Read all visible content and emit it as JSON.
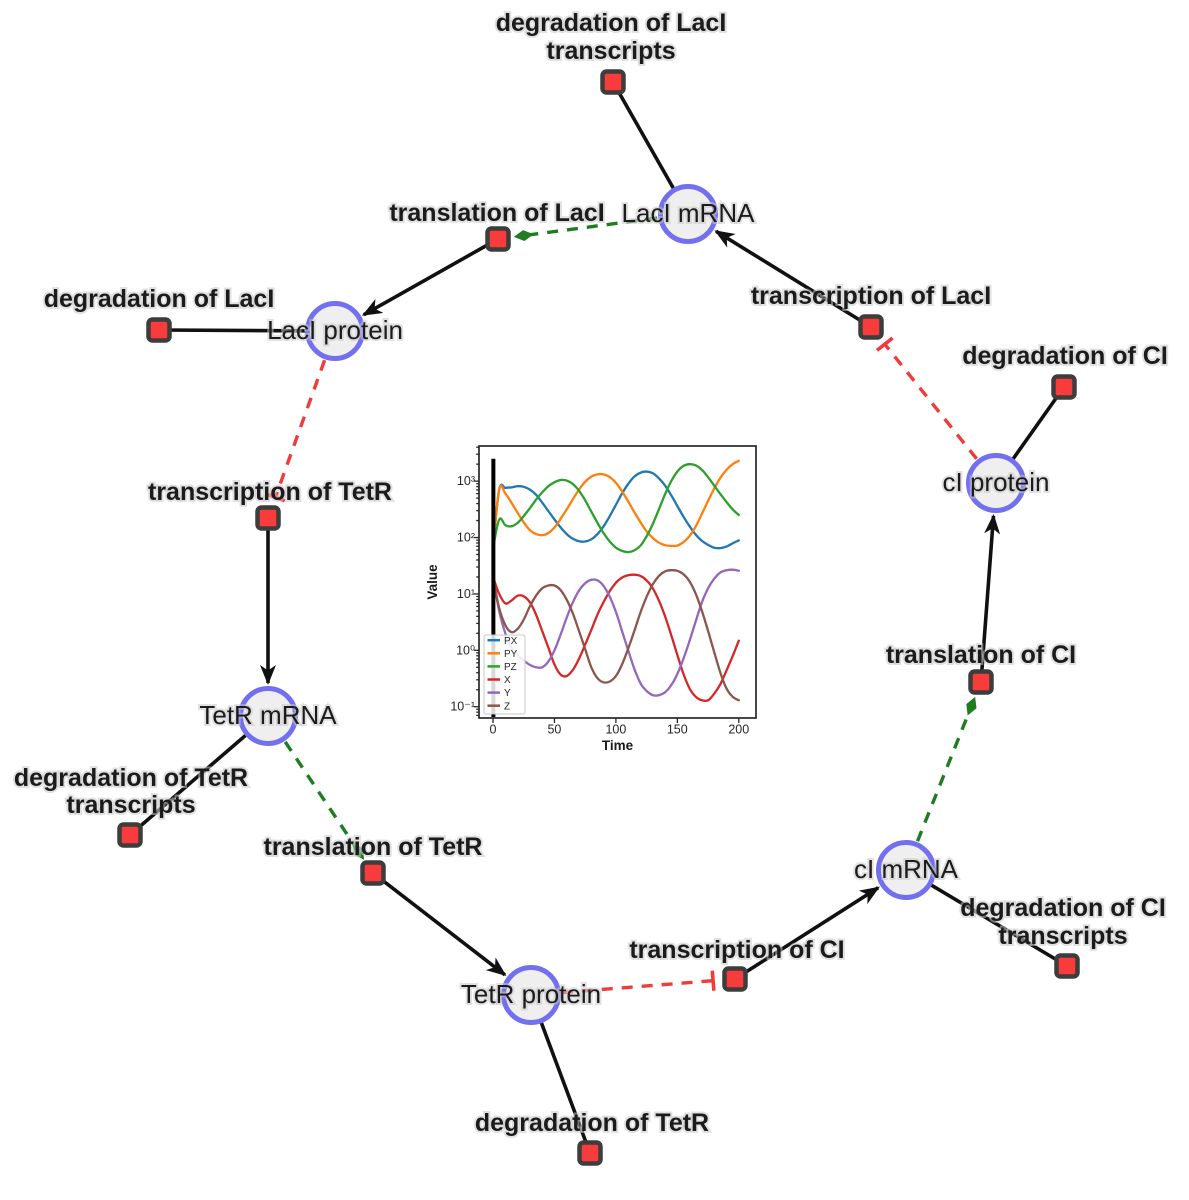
{
  "network": {
    "palette": {
      "species_fill": "#efefef",
      "species_border": "#7270ef",
      "reaction_fill": "#f83c3c",
      "reaction_border": "#3d3d3d",
      "reaction_edge": "#111111",
      "modifier_edge_green": "#1e7d1e",
      "inhibition_edge_red": "#ef3b3b"
    },
    "species": [
      {
        "id": "laci-mrna",
        "label": "LacI mRNA"
      },
      {
        "id": "laci-protein",
        "label": "LacI protein"
      },
      {
        "id": "tetr-mrna",
        "label": "TetR mRNA"
      },
      {
        "id": "tetr-protein",
        "label": "TetR protein"
      },
      {
        "id": "ci-mrna",
        "label": "cI mRNA"
      },
      {
        "id": "ci-protein",
        "label": "cI protein"
      }
    ],
    "reactions": [
      {
        "id": "degradation-of-laci-transcripts",
        "lines": [
          "degradation of LacI",
          "transcripts"
        ]
      },
      {
        "id": "translation-of-laci",
        "lines": [
          "translation of LacI"
        ]
      },
      {
        "id": "degradation-of-laci",
        "lines": [
          "degradation of LacI"
        ]
      },
      {
        "id": "transcription-of-laci",
        "lines": [
          "transcription of LacI"
        ]
      },
      {
        "id": "transcription-of-tetr",
        "lines": [
          "transcription of TetR"
        ]
      },
      {
        "id": "degradation-of-tetr-transcripts",
        "lines": [
          "degradation of TetR",
          "transcripts"
        ]
      },
      {
        "id": "translation-of-tetr",
        "lines": [
          "translation of TetR"
        ]
      },
      {
        "id": "degradation-of-tetr",
        "lines": [
          "degradation of TetR"
        ]
      },
      {
        "id": "transcription-of-ci",
        "lines": [
          "transcription of CI"
        ]
      },
      {
        "id": "degradation-of-ci-transcripts",
        "lines": [
          "degradation of CI",
          "transcripts"
        ]
      },
      {
        "id": "translation-of-ci",
        "lines": [
          "translation of CI"
        ]
      },
      {
        "id": "degradation-of-ci",
        "lines": [
          "degradation of CI"
        ]
      }
    ]
  },
  "chart_data": {
    "type": "line",
    "title": "",
    "xlabel": "Time",
    "ylabel": "Value",
    "y_scale": "log",
    "grid": false,
    "legend_position": "lower left",
    "xlim": [
      -11.4,
      214
    ],
    "ylim": [
      0.063,
      4200
    ],
    "x_ticks": [
      0,
      50,
      100,
      150,
      200
    ],
    "y_tick_labels": [
      "10³",
      "10²",
      "10¹",
      "10⁰",
      "10⁻¹"
    ],
    "y_tick_values": [
      1000,
      100,
      10,
      1,
      0.1
    ],
    "startup_line": {
      "x": 0.3,
      "y_top": 2500,
      "color": "#000000"
    },
    "x": [
      0,
      5,
      10,
      15,
      20,
      25,
      30,
      35,
      40,
      45,
      50,
      55,
      60,
      65,
      70,
      75,
      80,
      85,
      90,
      95,
      100,
      105,
      110,
      115,
      120,
      125,
      130,
      135,
      140,
      145,
      150,
      155,
      160,
      165,
      170,
      175,
      180,
      185,
      190,
      195,
      200
    ],
    "series": [
      {
        "name": "PX",
        "color": "#1f77b4",
        "values": [
          63,
          708,
          759,
          776,
          813,
          794,
          708,
          575,
          417,
          295,
          209,
          151,
          115,
          95,
          86,
          85,
          93,
          115,
          158,
          240,
          380,
          603,
          891,
          1202,
          1413,
          1479,
          1380,
          1122,
          832,
          562,
          363,
          234,
          158,
          112,
          87,
          74,
          66,
          65,
          69,
          79,
          89
        ]
      },
      {
        "name": "PY",
        "color": "#ff7f0e",
        "values": [
          63,
          724,
          603,
          417,
          275,
          186,
          135,
          115,
          110,
          120,
          151,
          214,
          316,
          479,
          708,
          977,
          1202,
          1318,
          1318,
          1175,
          933,
          661,
          437,
          282,
          186,
          129,
          98,
          81,
          73,
          71,
          72,
          83,
          107,
          158,
          263,
          447,
          741,
          1148,
          1585,
          1995,
          2291
        ]
      },
      {
        "name": "PZ",
        "color": "#2ca02c",
        "values": [
          63,
          209,
          166,
          158,
          182,
          240,
          331,
          468,
          631,
          813,
          955,
          1047,
          1023,
          891,
          676,
          457,
          288,
          182,
          120,
          85,
          66,
          58,
          55,
          59,
          72,
          105,
          174,
          316,
          589,
          1000,
          1479,
          1862,
          1995,
          1905,
          1585,
          1175,
          832,
          589,
          427,
          316,
          251
        ]
      },
      {
        "name": "X",
        "color": "#d62728",
        "values": [
          20,
          10,
          6.8,
          7.6,
          9.3,
          9.1,
          7.1,
          4.3,
          2.2,
          1.12,
          0.56,
          0.37,
          0.35,
          0.45,
          0.71,
          1.26,
          2.3,
          4.3,
          7.2,
          11.2,
          15.8,
          19.5,
          21.4,
          21.9,
          20.9,
          17.4,
          12.6,
          7.6,
          4.0,
          1.86,
          0.83,
          0.38,
          0.21,
          0.15,
          0.13,
          0.13,
          0.17,
          0.25,
          0.44,
          0.79,
          1.48
        ]
      },
      {
        "name": "Y",
        "color": "#9467bd",
        "values": [
          20,
          5.0,
          2.0,
          1.12,
          0.83,
          0.66,
          0.55,
          0.5,
          0.5,
          0.63,
          1.0,
          1.9,
          3.8,
          7.1,
          11.5,
          15.5,
          17.8,
          17.4,
          13.8,
          8.9,
          4.8,
          2.2,
          1.0,
          0.47,
          0.26,
          0.19,
          0.16,
          0.16,
          0.18,
          0.24,
          0.38,
          0.71,
          1.48,
          3.3,
          7.1,
          12.6,
          18.6,
          24.0,
          26.3,
          26.9,
          25.7
        ]
      },
      {
        "name": "Z",
        "color": "#8c564b",
        "values": [
          20,
          5.6,
          2.8,
          2.1,
          2.4,
          3.5,
          6.0,
          9.3,
          12.6,
          14.1,
          14.1,
          11.7,
          7.9,
          4.5,
          2.2,
          1.05,
          0.5,
          0.32,
          0.27,
          0.28,
          0.35,
          0.56,
          1.07,
          2.2,
          4.7,
          8.9,
          14.8,
          20.9,
          25.1,
          26.3,
          25.7,
          22.4,
          16.6,
          10,
          5.0,
          2.2,
          0.93,
          0.4,
          0.21,
          0.15,
          0.13
        ]
      }
    ]
  }
}
